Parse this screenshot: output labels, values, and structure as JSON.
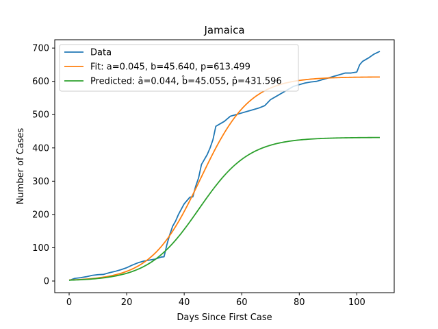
{
  "chart_data": {
    "type": "line",
    "title": "Jamaica",
    "xlabel": "Days Since First Case",
    "ylabel": "Number of Cases",
    "xlim": [
      -5,
      113
    ],
    "ylim": [
      -35,
      725
    ],
    "xticks": [
      0,
      20,
      40,
      60,
      80,
      100
    ],
    "yticks": [
      0,
      100,
      200,
      300,
      400,
      500,
      600,
      700
    ],
    "grid": false,
    "legend_position": "top-left",
    "series": [
      {
        "name": "Data",
        "color": "#1f77b4",
        "x": [
          0,
          2,
          4,
          6,
          8,
          10,
          12,
          14,
          16,
          18,
          20,
          22,
          24,
          26,
          28,
          30,
          32,
          33,
          34,
          35,
          36,
          37,
          38,
          40,
          42,
          43,
          44,
          45,
          46,
          48,
          49,
          50,
          51,
          52,
          54,
          56,
          58,
          60,
          62,
          64,
          66,
          68,
          70,
          72,
          74,
          76,
          78,
          80,
          82,
          84,
          86,
          88,
          90,
          92,
          94,
          96,
          98,
          100,
          101,
          102,
          104,
          106,
          108
        ],
        "y": [
          2,
          8,
          10,
          13,
          17,
          19,
          20,
          25,
          29,
          34,
          40,
          48,
          55,
          60,
          63,
          66,
          72,
          73,
          110,
          140,
          165,
          180,
          200,
          232,
          252,
          253,
          285,
          310,
          350,
          380,
          400,
          425,
          465,
          470,
          480,
          495,
          500,
          505,
          510,
          515,
          520,
          527,
          545,
          555,
          565,
          575,
          585,
          590,
          595,
          598,
          600,
          605,
          610,
          615,
          620,
          625,
          625,
          628,
          650,
          660,
          670,
          682,
          690
        ]
      },
      {
        "name": "Fit: a=0.045, b=45.640, p=613.499",
        "color": "#ff7f0e",
        "model": {
          "a": 0.045,
          "b": 45.64,
          "p": 613.499
        },
        "x_range": [
          0,
          108
        ]
      },
      {
        "name": "Predicted: â=0.044, b̂=45.055, p̂=431.596",
        "color": "#2ca02c",
        "model": {
          "a": 0.044,
          "b": 45.055,
          "p": 431.596
        },
        "x_range": [
          0,
          108
        ]
      }
    ]
  }
}
